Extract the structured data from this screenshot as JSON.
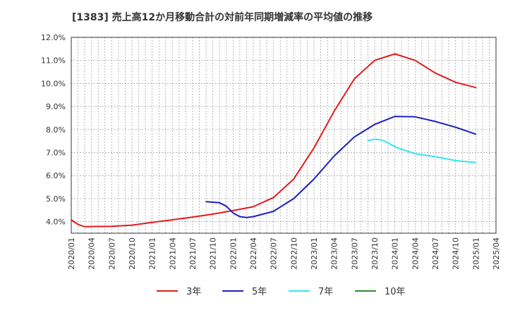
{
  "chart_data": {
    "type": "line",
    "title": "[1383]  売上高12か月移動合計の対前年同期増減率の平均値の推移",
    "xlabel": "",
    "ylabel": "",
    "ylim": [
      3.5,
      12.0
    ],
    "y_ticks": [
      "4.0%",
      "5.0%",
      "6.0%",
      "7.0%",
      "8.0%",
      "9.0%",
      "10.0%",
      "11.0%",
      "12.0%"
    ],
    "x_ticks": [
      "2020/01",
      "2020/04",
      "2020/07",
      "2020/10",
      "2021/01",
      "2021/04",
      "2021/07",
      "2021/10",
      "2022/01",
      "2022/04",
      "2022/07",
      "2022/10",
      "2023/01",
      "2023/04",
      "2023/07",
      "2023/10",
      "2024/01",
      "2024/04",
      "2024/07",
      "2024/10",
      "2025/01",
      "2025/04"
    ],
    "grid": true,
    "legend_position": "bottom",
    "series": [
      {
        "name": "3年",
        "color": "#e31a1c",
        "points": [
          [
            "2020/01",
            4.08
          ],
          [
            "2020/02",
            3.88
          ],
          [
            "2020/03",
            3.78
          ],
          [
            "2020/04",
            3.79
          ],
          [
            "2020/07",
            3.8
          ],
          [
            "2020/10",
            3.85
          ],
          [
            "2021/01",
            3.97
          ],
          [
            "2021/04",
            4.08
          ],
          [
            "2021/07",
            4.2
          ],
          [
            "2021/10",
            4.33
          ],
          [
            "2022/01",
            4.48
          ],
          [
            "2022/04",
            4.65
          ],
          [
            "2022/07",
            5.05
          ],
          [
            "2022/10",
            5.85
          ],
          [
            "2023/01",
            7.2
          ],
          [
            "2023/04",
            8.8
          ],
          [
            "2023/07",
            10.2
          ],
          [
            "2023/10",
            11.0
          ],
          [
            "2024/01",
            11.28
          ],
          [
            "2024/04",
            11.0
          ],
          [
            "2024/07",
            10.45
          ],
          [
            "2024/10",
            10.05
          ],
          [
            "2025/01",
            9.82
          ]
        ]
      },
      {
        "name": "5年",
        "color": "#1f1fbf",
        "points": [
          [
            "2021/09",
            4.87
          ],
          [
            "2021/11",
            4.82
          ],
          [
            "2021/12",
            4.67
          ],
          [
            "2022/01",
            4.38
          ],
          [
            "2022/02",
            4.22
          ],
          [
            "2022/03",
            4.18
          ],
          [
            "2022/04",
            4.22
          ],
          [
            "2022/07",
            4.45
          ],
          [
            "2022/10",
            5.0
          ],
          [
            "2023/01",
            5.85
          ],
          [
            "2023/04",
            6.85
          ],
          [
            "2023/07",
            7.68
          ],
          [
            "2023/10",
            8.22
          ],
          [
            "2024/01",
            8.57
          ],
          [
            "2024/04",
            8.55
          ],
          [
            "2024/07",
            8.35
          ],
          [
            "2024/10",
            8.1
          ],
          [
            "2025/01",
            7.8
          ]
        ]
      },
      {
        "name": "7年",
        "color": "#33e5f0",
        "points": [
          [
            "2023/09",
            7.52
          ],
          [
            "2023/10",
            7.58
          ],
          [
            "2023/11",
            7.55
          ],
          [
            "2023/12",
            7.42
          ],
          [
            "2024/01",
            7.25
          ],
          [
            "2024/04",
            6.95
          ],
          [
            "2024/07",
            6.82
          ],
          [
            "2024/10",
            6.65
          ],
          [
            "2025/01",
            6.57
          ]
        ]
      },
      {
        "name": "10年",
        "color": "#2e8b2e",
        "points": []
      }
    ]
  }
}
